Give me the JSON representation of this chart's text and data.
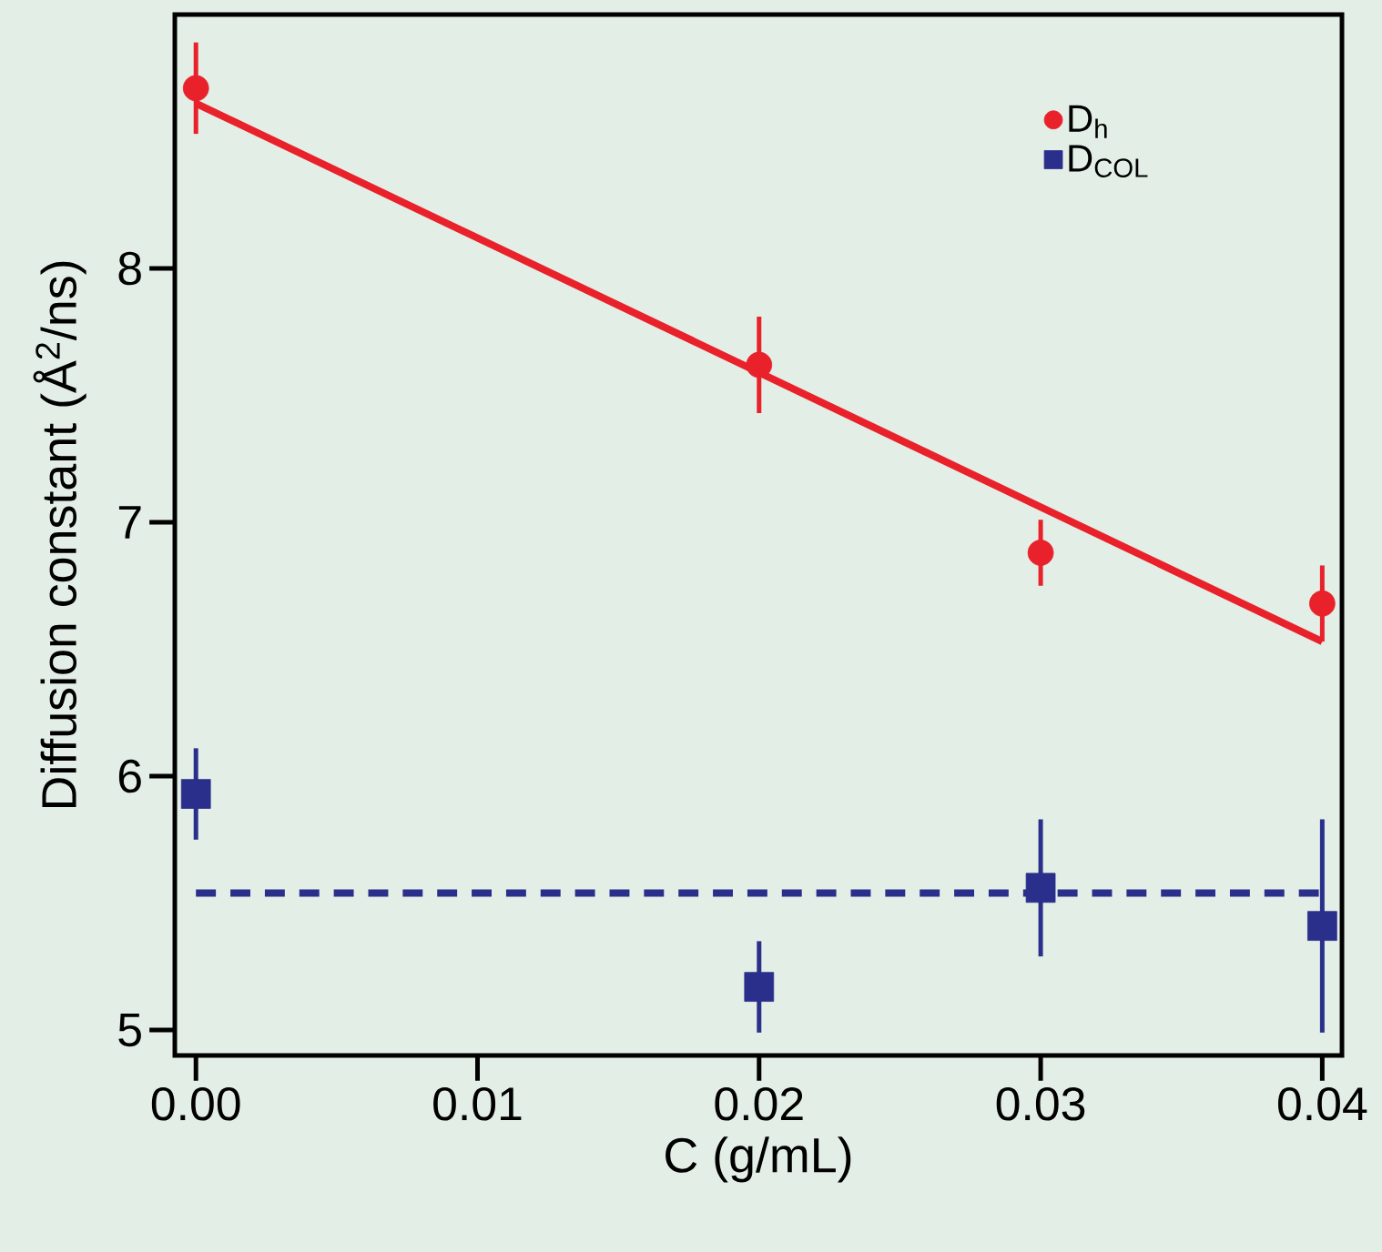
{
  "chart_data": {
    "type": "scatter",
    "xlabel": "C (g/mL)",
    "ylabel": "Diffusion constant (Å$^{2}$/ns)",
    "xlim": [
      -0.00075,
      0.0407
    ],
    "ylim": [
      4.9,
      9.0
    ],
    "xticks": [
      {
        "value": 0,
        "label": "0.00"
      },
      0.01,
      0.02,
      0.03,
      0.04
    ],
    "yticks": [
      5,
      6,
      7,
      8
    ],
    "grid": false,
    "legend": "top right",
    "series": [
      {
        "name": "D$_{h}$",
        "marker": "circle",
        "color": "#e8212b",
        "x": [
          0,
          0.02,
          0.03,
          0.04
        ],
        "values": [
          8.71,
          7.62,
          6.88,
          6.68
        ],
        "errors": [
          0.18,
          0.19,
          0.13,
          0.15
        ]
      },
      {
        "name": "D$_{COL}$",
        "marker": "square",
        "color": "#2b2f8c",
        "x": [
          0,
          0.02,
          0.03,
          0.04
        ],
        "values": [
          5.93,
          5.17,
          5.56,
          5.41
        ],
        "errors": [
          0.18,
          0.18,
          0.27,
          0.42
        ]
      },
      {
        "type": "line",
        "line_style": "solid",
        "marker": "none",
        "color": "#e8212b",
        "x": [
          0,
          0.04
        ],
        "values": [
          8.65,
          6.53
        ]
      },
      {
        "type": "line",
        "line_style": "dashed",
        "marker": "none",
        "color": "#2b2f8c",
        "x": [
          0,
          0.04
        ],
        "values": [
          5.54,
          5.54
        ]
      }
    ]
  }
}
